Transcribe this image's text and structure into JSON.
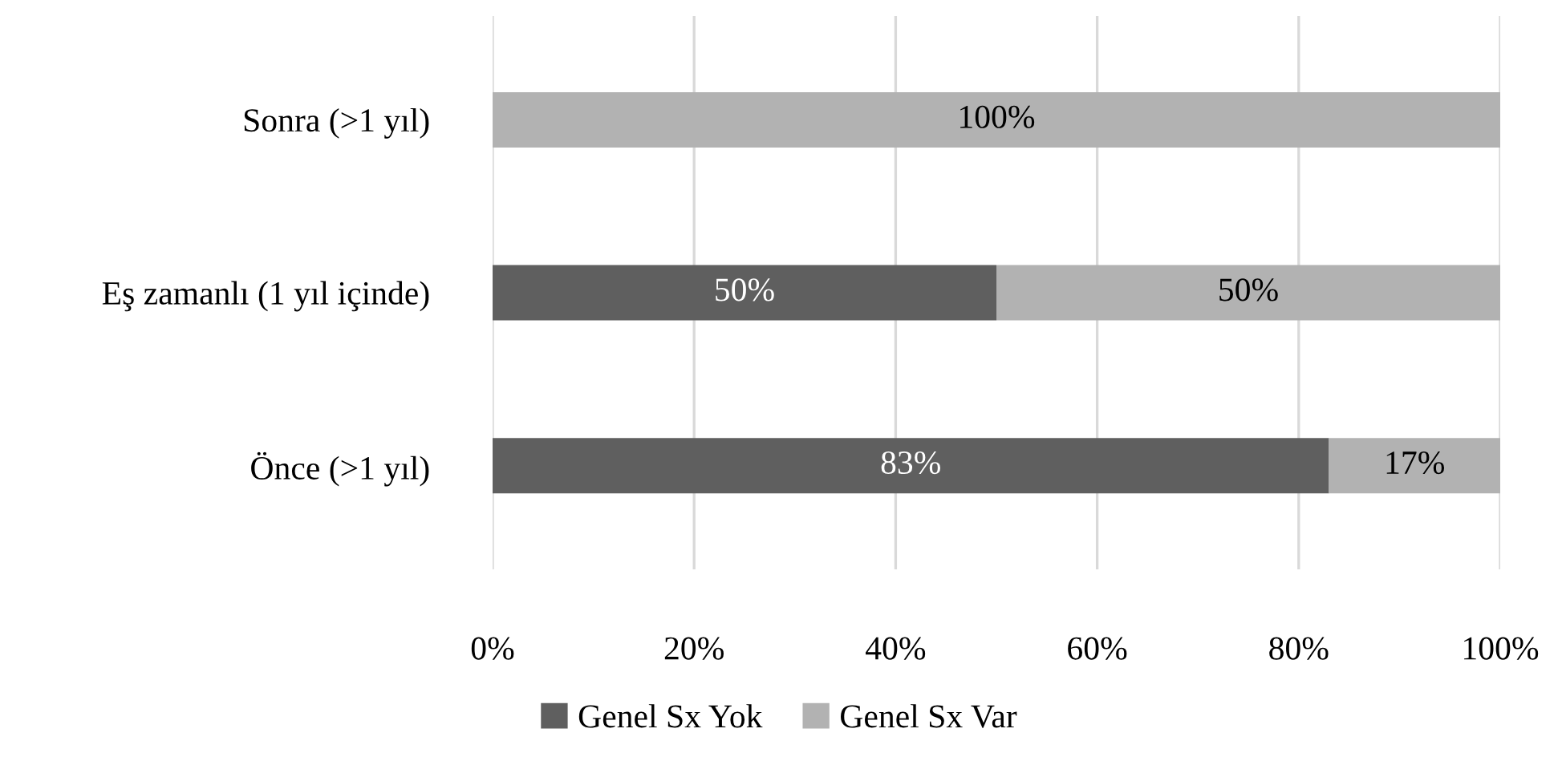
{
  "chart_data": {
    "type": "bar",
    "orientation": "horizontal",
    "stacked": true,
    "categories": [
      "Sonra (>1 yıl)",
      "Eş zamanlı (1 yıl içinde)",
      "Önce (>1 yıl)"
    ],
    "series": [
      {
        "name": "Genel Sx Yok",
        "color": "#5f5f5f",
        "values": [
          0,
          50,
          83
        ],
        "value_labels": [
          null,
          "50%",
          "83%"
        ]
      },
      {
        "name": "Genel Sx Var",
        "color": "#b2b2b2",
        "values": [
          100,
          50,
          17
        ],
        "value_labels": [
          "100%",
          "50%",
          "17%"
        ]
      }
    ],
    "xlim": [
      0,
      100
    ],
    "xticks": [
      {
        "value": 0,
        "label": "0%"
      },
      {
        "value": 20,
        "label": "20%"
      },
      {
        "value": 40,
        "label": "40%"
      },
      {
        "value": 60,
        "label": "60%"
      },
      {
        "value": 80,
        "label": "80%"
      },
      {
        "value": 100,
        "label": "100%"
      }
    ],
    "grid": "x",
    "legend": "bottom"
  }
}
